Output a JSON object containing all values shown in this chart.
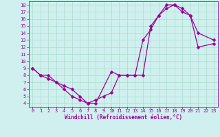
{
  "xlabel": "Windchill (Refroidissement éolien,°C)",
  "line_color": "#990099",
  "bg_color": "#cff0ee",
  "grid_color": "#aaddcc",
  "xlim": [
    -0.5,
    23.5
  ],
  "ylim": [
    3.5,
    18.5
  ],
  "xticks": [
    0,
    1,
    2,
    3,
    4,
    5,
    6,
    7,
    8,
    9,
    10,
    11,
    12,
    13,
    14,
    15,
    16,
    17,
    18,
    19,
    20,
    21,
    22,
    23
  ],
  "yticks": [
    4,
    5,
    6,
    7,
    8,
    9,
    10,
    11,
    12,
    13,
    14,
    15,
    16,
    17,
    18
  ],
  "line1_x": [
    0,
    1,
    2,
    3,
    4,
    5,
    6,
    7,
    8,
    10,
    11,
    12,
    13,
    14,
    15,
    16,
    17,
    18,
    19,
    20,
    21,
    23
  ],
  "line1_y": [
    9,
    8,
    7.5,
    7,
    6.5,
    6,
    5,
    4,
    4,
    8.5,
    8,
    8,
    8,
    8,
    15,
    16.5,
    18,
    18,
    17,
    16.5,
    14,
    13
  ],
  "line2_x": [
    0,
    1,
    2,
    3,
    4,
    5,
    6,
    7,
    8,
    9,
    10,
    11,
    12,
    13,
    14,
    15,
    16,
    17,
    18,
    19,
    20,
    21,
    23
  ],
  "line2_y": [
    9,
    8,
    8,
    7,
    6,
    5,
    4.5,
    4,
    4.5,
    5,
    5.5,
    8,
    8,
    8,
    13,
    14.5,
    16.5,
    17.5,
    18,
    17.5,
    16.5,
    12,
    12.5
  ],
  "markersize": 2.5,
  "linewidth": 0.9,
  "tick_fontsize": 5.0,
  "xlabel_fontsize": 5.5
}
